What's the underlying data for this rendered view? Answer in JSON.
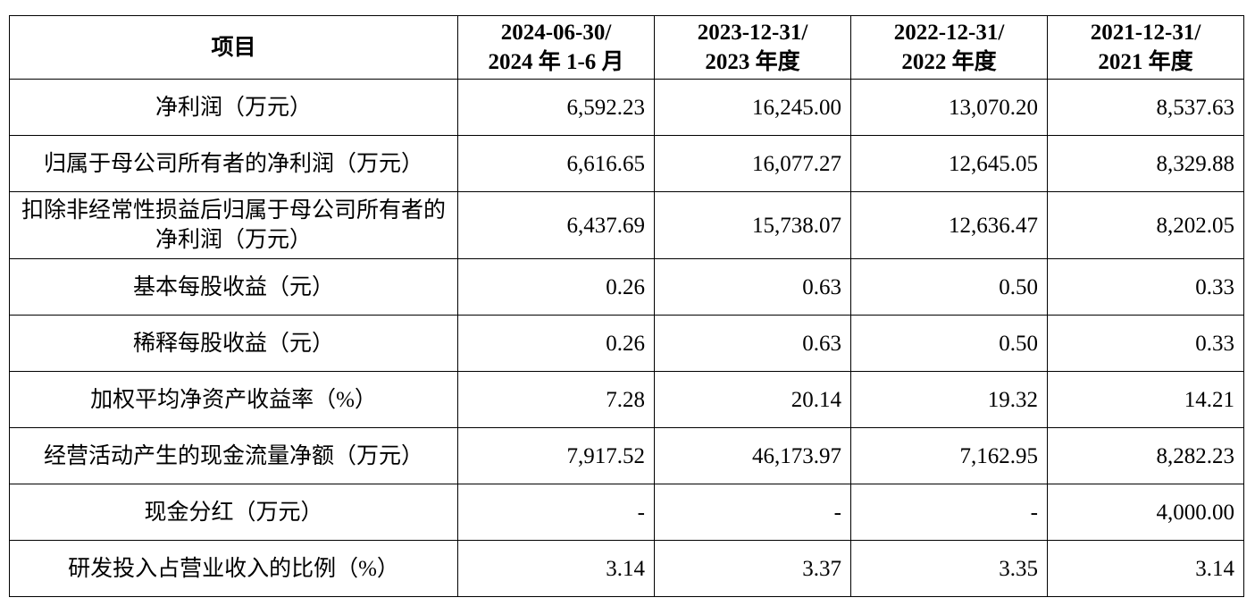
{
  "table": {
    "header": {
      "item": "项目",
      "periods": [
        {
          "date": "2024-06-30/",
          "period": "2024 年 1-6 月"
        },
        {
          "date": "2023-12-31/",
          "period": "2023 年度"
        },
        {
          "date": "2022-12-31/",
          "period": "2022 年度"
        },
        {
          "date": "2021-12-31/",
          "period": "2021 年度"
        }
      ]
    },
    "rows": [
      {
        "label": "净利润（万元）",
        "values": [
          "6,592.23",
          "16,245.00",
          "13,070.20",
          "8,537.63"
        ]
      },
      {
        "label": "归属于母公司所有者的净利润（万元）",
        "values": [
          "6,616.65",
          "16,077.27",
          "12,645.05",
          "8,329.88"
        ]
      },
      {
        "label": "扣除非经常性损益后归属于母公司所有者的净利润（万元）",
        "values": [
          "6,437.69",
          "15,738.07",
          "12,636.47",
          "8,202.05"
        ]
      },
      {
        "label": "基本每股收益（元）",
        "values": [
          "0.26",
          "0.63",
          "0.50",
          "0.33"
        ]
      },
      {
        "label": "稀释每股收益（元）",
        "values": [
          "0.26",
          "0.63",
          "0.50",
          "0.33"
        ]
      },
      {
        "label": "加权平均净资产收益率（%）",
        "values": [
          "7.28",
          "20.14",
          "19.32",
          "14.21"
        ]
      },
      {
        "label": "经营活动产生的现金流量净额（万元）",
        "values": [
          "7,917.52",
          "46,173.97",
          "7,162.95",
          "8,282.23"
        ]
      },
      {
        "label": "现金分红（万元）",
        "values": [
          "-",
          "-",
          "-",
          "4,000.00"
        ]
      },
      {
        "label": "研发投入占营业收入的比例（%）",
        "values": [
          "3.14",
          "3.37",
          "3.35",
          "3.14"
        ]
      }
    ]
  }
}
